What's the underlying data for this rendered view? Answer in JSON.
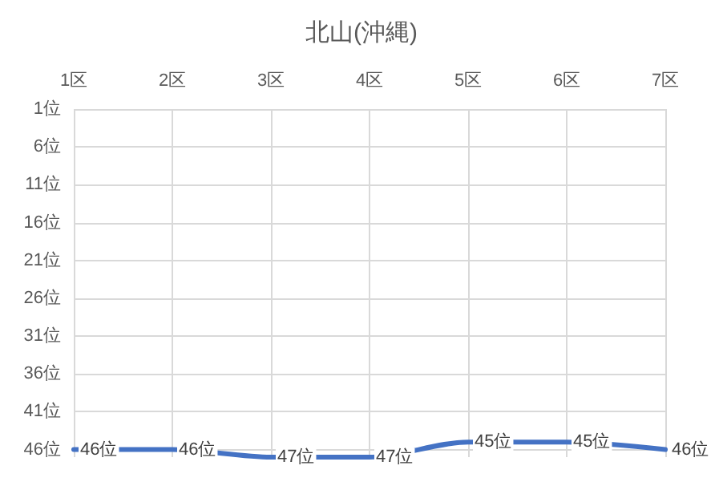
{
  "chart_data": {
    "type": "line",
    "title": "北山(沖縄)",
    "categories": [
      "1区",
      "2区",
      "3区",
      "4区",
      "5区",
      "6区",
      "7区"
    ],
    "series": [
      {
        "color": "#4472c4",
        "values": [
          46,
          46,
          47,
          47,
          45,
          45,
          46
        ],
        "value_labels": [
          "46位",
          "46位",
          "47位",
          "47位",
          "45位",
          "45位",
          "46位"
        ]
      }
    ],
    "ylim": [
      47,
      1
    ],
    "yticks": [
      {
        "value": 1,
        "label": "1位"
      },
      {
        "value": 6,
        "label": "6位"
      },
      {
        "value": 11,
        "label": "11位"
      },
      {
        "value": 16,
        "label": "16位"
      },
      {
        "value": 21,
        "label": "21位"
      },
      {
        "value": 26,
        "label": "26位"
      },
      {
        "value": 31,
        "label": "31位"
      },
      {
        "value": 36,
        "label": "36位"
      },
      {
        "value": 41,
        "label": "41位"
      },
      {
        "value": 46,
        "label": "46位"
      }
    ],
    "grid": true,
    "marker": "none"
  }
}
